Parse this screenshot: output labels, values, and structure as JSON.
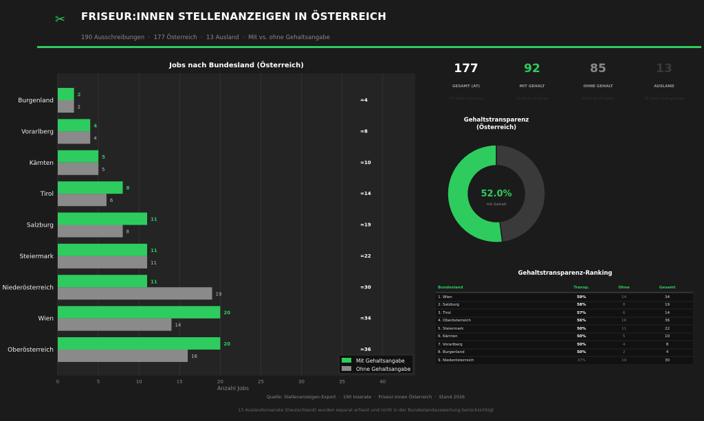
{
  "header": {
    "title": "FRISEUR:INNEN STELLENANZEIGEN IN ÖSTERREICH",
    "subtitle": "190 Ausschreibungen  ·  177 Österreich  ·  13 Ausland  ·  Mit vs. ohne Gehaltsangabe",
    "icon": "scissors-icon"
  },
  "colors": {
    "accent": "#2ecc5e",
    "gray": "#8a8a8a",
    "background": "#1b1b1b"
  },
  "chart_data": [
    {
      "type": "bar",
      "orientation": "horizontal",
      "title": "Jobs nach Bundesland (Österreich)",
      "xlabel": "Anzahl Jobs",
      "xlim": [
        0,
        44
      ],
      "xticks": [
        0,
        5,
        10,
        15,
        20,
        25,
        30,
        35,
        40
      ],
      "grid": true,
      "legend": "bottom-right",
      "categories": [
        "Burgenland",
        "Vorarlberg",
        "Kärnten",
        "Tirol",
        "Salzburg",
        "Steiermark",
        "Niederösterreich",
        "Wien",
        "Oberösterreich"
      ],
      "series": [
        {
          "name": "Mit Gehaltsangabe",
          "color": "#2ecc5e",
          "values": [
            2,
            4,
            5,
            8,
            11,
            11,
            11,
            20,
            20
          ]
        },
        {
          "name": "Ohne Gehaltsangabe",
          "color": "#8a8a8a",
          "values": [
            2,
            4,
            5,
            6,
            8,
            11,
            19,
            14,
            16
          ]
        }
      ],
      "totals": [
        "=4",
        "=8",
        "=10",
        "=14",
        "=19",
        "=22",
        "=30",
        "=34",
        "=36"
      ]
    },
    {
      "type": "pie",
      "title": "Gehaltstransparenz\n(Österreich)",
      "center_label": "52.0%",
      "center_sublabel": "mit Gehalt",
      "values": [
        92,
        85
      ],
      "colors": [
        "#2ecc5e",
        "#3a3a3a"
      ]
    }
  ],
  "kpis": [
    {
      "value": "177",
      "label": "GESAMT (AT)",
      "sub": "177 Stellen Österreich",
      "color": "#ffffff"
    },
    {
      "value": "92",
      "label": "MIT GEHALT",
      "sub": "52.0% der AT Stellen",
      "color": "#2ecc5e"
    },
    {
      "value": "85",
      "label": "OHNE GEHALT",
      "sub": "48.0% der AT Stellen",
      "color": "#8a8a8a"
    },
    {
      "value": "13",
      "label": "AUSLAND",
      "sub": "DE Stellen nicht gewertet",
      "color": "#3a3a3a"
    }
  ],
  "ranking": {
    "title": "Gehaltstransparenz-Ranking",
    "headers": [
      "Bundesland",
      "Transp.",
      "Ohne",
      "Gesamt"
    ],
    "rows": [
      [
        "1. Wien",
        "59%",
        "14",
        "34"
      ],
      [
        "2. Salzburg",
        "58%",
        "8",
        "19"
      ],
      [
        "3. Tirol",
        "57%",
        "6",
        "14"
      ],
      [
        "4. Oberösterreich",
        "56%",
        "16",
        "36"
      ],
      [
        "5. Steiermark",
        "50%",
        "11",
        "22"
      ],
      [
        "6. Kärnten",
        "50%",
        "5",
        "10"
      ],
      [
        "7. Vorarlberg",
        "50%",
        "4",
        "8"
      ],
      [
        "8. Burgenland",
        "50%",
        "2",
        "4"
      ],
      [
        "9. Niederösterreich",
        "37%",
        "19",
        "30"
      ]
    ]
  },
  "footer": {
    "source": "Quelle: Stellenanzeigen-Export  ·  190 Inserate  ·  Friseur:innen Österreich  ·  Stand 2026",
    "note": "13 Auslandsinserate (Deutschland) wurden separat erfasst und nicht in der Bundeslandauswertung berücksichtigt"
  }
}
